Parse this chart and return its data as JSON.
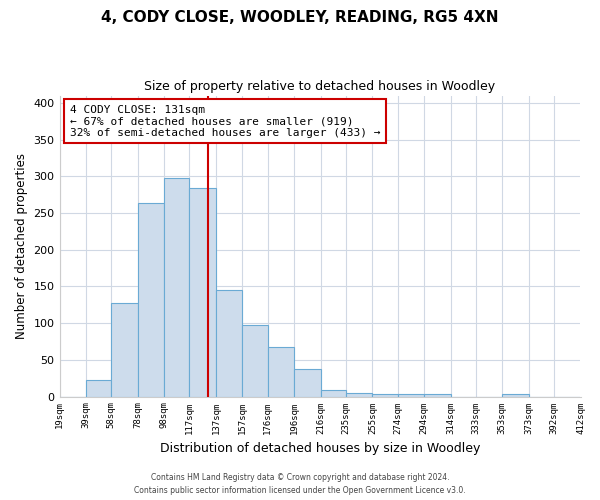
{
  "title": "4, CODY CLOSE, WOODLEY, READING, RG5 4XN",
  "subtitle": "Size of property relative to detached houses in Woodley",
  "xlabel": "Distribution of detached houses by size in Woodley",
  "ylabel": "Number of detached properties",
  "bar_edges": [
    19,
    39,
    58,
    78,
    98,
    117,
    137,
    157,
    176,
    196,
    216,
    235,
    255,
    274,
    294,
    314,
    333,
    353,
    373,
    392,
    412
  ],
  "bar_heights": [
    0,
    22,
    128,
    263,
    298,
    284,
    145,
    98,
    68,
    37,
    9,
    5,
    3,
    3,
    3,
    0,
    0,
    3,
    0,
    0
  ],
  "bar_color": "#cddcec",
  "bar_edgecolor": "#6aaad4",
  "vline_x": 131,
  "vline_color": "#cc0000",
  "annotation_line1": "4 CODY CLOSE: 131sqm",
  "annotation_line2": "← 67% of detached houses are smaller (919)",
  "annotation_line3": "32% of semi-detached houses are larger (433) →",
  "annotation_box_edgecolor": "#cc0000",
  "annotation_box_facecolor": "#ffffff",
  "ylim": [
    0,
    410
  ],
  "xlim": [
    19,
    412
  ],
  "yticks": [
    0,
    50,
    100,
    150,
    200,
    250,
    300,
    350,
    400
  ],
  "xtick_labels": [
    "19sqm",
    "39sqm",
    "58sqm",
    "78sqm",
    "98sqm",
    "117sqm",
    "137sqm",
    "157sqm",
    "176sqm",
    "196sqm",
    "216sqm",
    "235sqm",
    "255sqm",
    "274sqm",
    "294sqm",
    "314sqm",
    "333sqm",
    "353sqm",
    "373sqm",
    "392sqm",
    "412sqm"
  ],
  "xtick_positions": [
    19,
    39,
    58,
    78,
    98,
    117,
    137,
    157,
    176,
    196,
    216,
    235,
    255,
    274,
    294,
    314,
    333,
    353,
    373,
    392,
    412
  ],
  "footer_line1": "Contains HM Land Registry data © Crown copyright and database right 2024.",
  "footer_line2": "Contains public sector information licensed under the Open Government Licence v3.0.",
  "grid_color": "#d0d8e4",
  "background_color": "#ffffff",
  "title_fontsize": 11,
  "subtitle_fontsize": 9
}
